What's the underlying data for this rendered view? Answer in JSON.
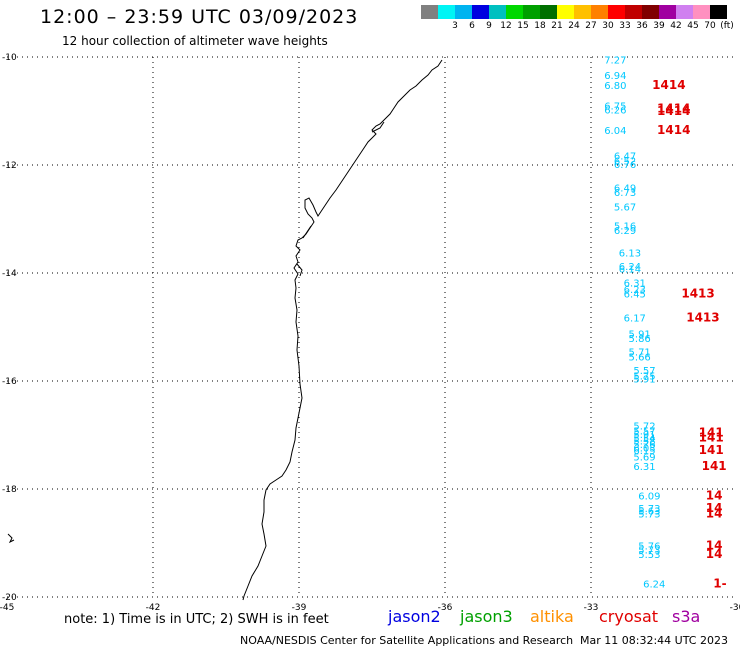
{
  "header": {
    "title": "12:00 – 23:59 UTC 03/09/2023",
    "subtitle": "12 hour collection of altimeter wave heights"
  },
  "colorbar": {
    "unit": "(ft)",
    "swatches": [
      {
        "label": "",
        "color": "#808080"
      },
      {
        "label": "3",
        "color": "#00f5f5"
      },
      {
        "label": "6",
        "color": "#00b4f0"
      },
      {
        "label": "9",
        "color": "#0000e0"
      },
      {
        "label": "12",
        "color": "#00c0c0"
      },
      {
        "label": "15",
        "color": "#00d800"
      },
      {
        "label": "18",
        "color": "#00a000"
      },
      {
        "label": "21",
        "color": "#007000"
      },
      {
        "label": "24",
        "color": "#ffff00"
      },
      {
        "label": "27",
        "color": "#ffc000"
      },
      {
        "label": "30",
        "color": "#ff8000"
      },
      {
        "label": "33",
        "color": "#ff0000"
      },
      {
        "label": "36",
        "color": "#c00000"
      },
      {
        "label": "39",
        "color": "#800000"
      },
      {
        "label": "42",
        "color": "#a000a0"
      },
      {
        "label": "45",
        "color": "#d080f0"
      },
      {
        "label": "70",
        "color": "#ff90c0"
      },
      {
        "label": "",
        "color": "#000000"
      }
    ]
  },
  "chart_data": {
    "type": "scatter",
    "x_ticks": [
      "-45",
      "-42",
      "-39",
      "-36",
      "-33",
      "-30"
    ],
    "y_ticks": [
      "-10",
      "-12",
      "-14",
      "-16",
      "-18",
      "-20"
    ],
    "xlim": [
      -45,
      -30
    ],
    "ylim": [
      -20,
      -10
    ],
    "grid": true,
    "series": [
      {
        "name": "s3a",
        "color": "#00c8ff",
        "points": [
          {
            "lon": -32.5,
            "lat": -10.05,
            "v": "7.27"
          },
          {
            "lon": -32.5,
            "lat": -10.33,
            "v": "6.94"
          },
          {
            "lon": -32.5,
            "lat": -10.52,
            "v": "6.80"
          },
          {
            "lon": -32.5,
            "lat": -10.9,
            "v": "6.75"
          },
          {
            "lon": -32.5,
            "lat": -10.97,
            "v": "6.26"
          },
          {
            "lon": -32.5,
            "lat": -11.35,
            "v": "6.04"
          },
          {
            "lon": -32.3,
            "lat": -11.82,
            "v": "6.47"
          },
          {
            "lon": -32.3,
            "lat": -11.92,
            "v": "6.52"
          },
          {
            "lon": -32.3,
            "lat": -11.98,
            "v": "6.76"
          },
          {
            "lon": -32.3,
            "lat": -12.42,
            "v": "6.49"
          },
          {
            "lon": -32.3,
            "lat": -12.5,
            "v": "6.73"
          },
          {
            "lon": -32.3,
            "lat": -12.77,
            "v": "5.67"
          },
          {
            "lon": -32.3,
            "lat": -13.12,
            "v": "5.16"
          },
          {
            "lon": -32.3,
            "lat": -13.2,
            "v": "6.29"
          },
          {
            "lon": -32.2,
            "lat": -13.62,
            "v": "6.13"
          },
          {
            "lon": -32.2,
            "lat": -13.87,
            "v": "6.24"
          },
          {
            "lon": -32.2,
            "lat": -13.92,
            "v": "6.14"
          },
          {
            "lon": -32.1,
            "lat": -14.18,
            "v": "6.31"
          },
          {
            "lon": -32.1,
            "lat": -14.3,
            "v": "6.23"
          },
          {
            "lon": -32.1,
            "lat": -14.38,
            "v": "6.45"
          },
          {
            "lon": -32.1,
            "lat": -14.82,
            "v": "6.17"
          },
          {
            "lon": -32.0,
            "lat": -15.12,
            "v": "5.91"
          },
          {
            "lon": -32.0,
            "lat": -15.2,
            "v": "5.86"
          },
          {
            "lon": -32.0,
            "lat": -15.45,
            "v": "5.71"
          },
          {
            "lon": -32.0,
            "lat": -15.55,
            "v": "5.66"
          },
          {
            "lon": -31.9,
            "lat": -15.8,
            "v": "5.57"
          },
          {
            "lon": -31.9,
            "lat": -15.9,
            "v": "5.75"
          },
          {
            "lon": -31.9,
            "lat": -15.95,
            "v": "5.91"
          },
          {
            "lon": -31.9,
            "lat": -16.82,
            "v": "5.72"
          },
          {
            "lon": -31.9,
            "lat": -16.92,
            "v": "5.57"
          },
          {
            "lon": -31.9,
            "lat": -16.98,
            "v": "5.91"
          },
          {
            "lon": -31.9,
            "lat": -17.05,
            "v": "5.54"
          },
          {
            "lon": -31.9,
            "lat": -17.1,
            "v": "5.58"
          },
          {
            "lon": -31.9,
            "lat": -17.17,
            "v": "5.76"
          },
          {
            "lon": -31.9,
            "lat": -17.23,
            "v": "6.03"
          },
          {
            "lon": -31.9,
            "lat": -17.28,
            "v": "6.15"
          },
          {
            "lon": -31.9,
            "lat": -17.4,
            "v": "5.69"
          },
          {
            "lon": -31.9,
            "lat": -17.57,
            "v": "6.31"
          },
          {
            "lon": -31.8,
            "lat": -18.12,
            "v": "6.09"
          },
          {
            "lon": -31.8,
            "lat": -18.35,
            "v": "5.73"
          },
          {
            "lon": -31.8,
            "lat": -18.4,
            "v": "5.63"
          },
          {
            "lon": -31.8,
            "lat": -18.45,
            "v": "5.73"
          },
          {
            "lon": -31.8,
            "lat": -19.05,
            "v": "5.76"
          },
          {
            "lon": -31.8,
            "lat": -19.12,
            "v": "5.73"
          },
          {
            "lon": -31.8,
            "lat": -19.2,
            "v": "5.53"
          },
          {
            "lon": -31.7,
            "lat": -19.75,
            "v": "6.24"
          }
        ]
      },
      {
        "name": "time",
        "color": "#e00000",
        "points": [
          {
            "lon": -31.4,
            "lat": -10.52,
            "v": "1414"
          },
          {
            "lon": -31.3,
            "lat": -10.95,
            "v": "1414"
          },
          {
            "lon": -31.3,
            "lat": -11.0,
            "v": "1414"
          },
          {
            "lon": -31.3,
            "lat": -11.35,
            "v": "1414"
          },
          {
            "lon": -30.8,
            "lat": -14.38,
            "v": "1413"
          },
          {
            "lon": -30.7,
            "lat": -14.82,
            "v": "1413"
          },
          {
            "lon": -30.53,
            "lat": -16.95,
            "v": "141"
          },
          {
            "lon": -30.53,
            "lat": -17.05,
            "v": "141"
          },
          {
            "lon": -30.53,
            "lat": -17.28,
            "v": "141"
          },
          {
            "lon": -30.47,
            "lat": -17.57,
            "v": "141"
          },
          {
            "lon": -30.47,
            "lat": -18.12,
            "v": "14"
          },
          {
            "lon": -30.47,
            "lat": -18.35,
            "v": "14"
          },
          {
            "lon": -30.47,
            "lat": -18.45,
            "v": "14"
          },
          {
            "lon": -30.47,
            "lat": -19.05,
            "v": "14"
          },
          {
            "lon": -30.47,
            "lat": -19.2,
            "v": "14"
          },
          {
            "lon": -30.35,
            "lat": -19.75,
            "v": "1-"
          }
        ]
      }
    ]
  },
  "note": "note: 1) Time is in UTC; 2) SWH is in feet",
  "legend": [
    {
      "label": "jason2",
      "color": "#0000e0"
    },
    {
      "label": "jason3",
      "color": "#00a000"
    },
    {
      "label": "altika",
      "color": "#ff9000"
    },
    {
      "label": "cryosat",
      "color": "#e00000"
    },
    {
      "label": "s3a",
      "color": "#a000a0"
    }
  ],
  "footer": {
    "credit": "NOAA/NESDIS Center for Satellite Applications and Research",
    "timestamp": "Mar 11 08:32:44 UTC 2023"
  }
}
